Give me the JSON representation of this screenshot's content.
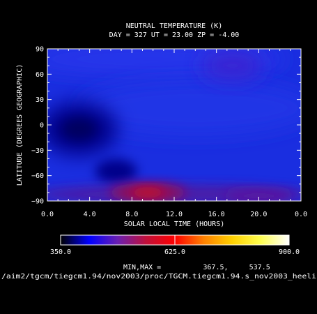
{
  "chart_data": {
    "type": "heatmap",
    "title": "NEUTRAL TEMPERATURE (K)",
    "subtitle": "DAY = 327   UT = 23.00   ZP =   -4.00",
    "xlabel": "SOLAR LOCAL TIME (HOURS)",
    "ylabel": "LATITUDE (DEGREES GEOGRAPHIC)",
    "x_ticks": [
      "0.0",
      "4.0",
      "8.0",
      "12.0",
      "16.0",
      "20.0",
      "0.0"
    ],
    "y_ticks": [
      "90",
      "60",
      "30",
      "0",
      "-30",
      "-60",
      "-90"
    ],
    "xlim": [
      0,
      24
    ],
    "ylim": [
      -90,
      90
    ],
    "colorbar": {
      "min_label": "350.0",
      "mid_label": "625.0",
      "max_label": "900.0",
      "range": [
        350,
        900
      ],
      "stops": [
        "#000000",
        "#0000ff",
        "#6a1fb0",
        "#c0103a",
        "#ff0000",
        "#ff8000",
        "#ffd000",
        "#ffff50",
        "#ffffff"
      ]
    },
    "minmax_line": "MIN,MAX =          367.5,     537.5",
    "min": 367.5,
    "max": 537.5,
    "path_line": "/aim2/tgcm/tiegcm1.94/nov2003/proc/TGCM.tiegcm1.94.s_nov2003_heeli",
    "grid": false,
    "field_features": [
      {
        "lt": 3.0,
        "lat": -5,
        "value": 367.5,
        "desc": "cold center mid-latitude pre-dawn"
      },
      {
        "lt": 6.5,
        "lat": -55,
        "value": 372,
        "desc": "cold spot southern dawn"
      },
      {
        "lt": 9.5,
        "lat": -80,
        "value": 537.5,
        "desc": "warm south polar pre-noon"
      },
      {
        "lt": 17.5,
        "lat": 70,
        "value": 430,
        "desc": "mild warm northern afternoon"
      },
      {
        "lt": 12.0,
        "lat": 40,
        "value": 400,
        "desc": "background"
      }
    ]
  }
}
